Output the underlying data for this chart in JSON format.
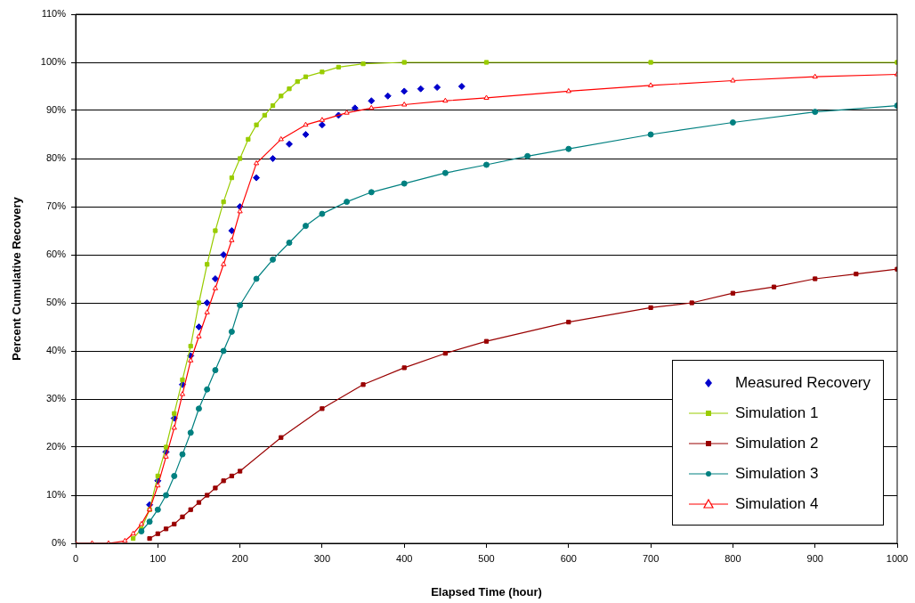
{
  "chart_data": {
    "type": "line",
    "xlabel": "Elapsed Time (hour)",
    "ylabel": "Percent Cumulative Recovery",
    "xlim": [
      0,
      1000
    ],
    "xticks": [
      0,
      100,
      200,
      300,
      400,
      500,
      600,
      700,
      800,
      900,
      1000
    ],
    "ylim": [
      0,
      110
    ],
    "yticks": [
      {
        "value": 0,
        "label": "0%"
      },
      {
        "value": 10,
        "label": "10%"
      },
      {
        "value": 20,
        "label": "20%"
      },
      {
        "value": 30,
        "label": "30%"
      },
      {
        "value": 40,
        "label": "40%"
      },
      {
        "value": 50,
        "label": "50%"
      },
      {
        "value": 60,
        "label": "60%"
      },
      {
        "value": 70,
        "label": "70%"
      },
      {
        "value": 80,
        "label": "80%"
      },
      {
        "value": 90,
        "label": "90%"
      },
      {
        "value": 100,
        "label": "100%"
      },
      {
        "value": 110,
        "label": "110%"
      }
    ],
    "grid": "y",
    "legend": "bottom right",
    "series": [
      {
        "name": "Measured Recovery",
        "type": "scatter",
        "marker": "diamond",
        "color": "#0000cc",
        "x": [
          90,
          100,
          110,
          120,
          130,
          140,
          150,
          160,
          170,
          180,
          190,
          200,
          220,
          240,
          260,
          280,
          300,
          320,
          340,
          360,
          380,
          400,
          420,
          440,
          470
        ],
        "values": [
          8,
          13,
          19,
          26,
          33,
          39,
          45,
          50,
          55,
          60,
          65,
          70,
          76,
          80,
          83,
          85,
          87,
          89,
          90.5,
          92,
          93,
          94,
          94.5,
          94.8,
          95
        ]
      },
      {
        "name": "Simulation 1",
        "type": "line",
        "marker": "square",
        "color": "#99cc00",
        "x": [
          70,
          80,
          90,
          100,
          110,
          120,
          130,
          140,
          150,
          160,
          170,
          180,
          190,
          200,
          210,
          220,
          230,
          240,
          250,
          260,
          270,
          280,
          300,
          320,
          350,
          400,
          500,
          700,
          1000
        ],
        "values": [
          1,
          3,
          7,
          14,
          20,
          27,
          34,
          41,
          50,
          58,
          65,
          71,
          76,
          80,
          84,
          87,
          89,
          91,
          93,
          94.5,
          96,
          97,
          98,
          99,
          99.7,
          100,
          100,
          100,
          100
        ]
      },
      {
        "name": "Simulation 2",
        "type": "line",
        "marker": "square",
        "color": "#990000",
        "x": [
          90,
          100,
          110,
          120,
          130,
          140,
          150,
          160,
          170,
          180,
          190,
          200,
          250,
          300,
          350,
          400,
          450,
          500,
          600,
          700,
          750,
          800,
          850,
          900,
          950,
          1000
        ],
        "values": [
          1,
          2,
          3,
          4,
          5.5,
          7,
          8.5,
          10,
          11.5,
          13,
          14,
          15,
          22,
          28,
          33,
          36.5,
          39.5,
          42,
          46,
          49,
          50,
          52,
          53.3,
          55,
          56,
          57
        ]
      },
      {
        "name": "Simulation 3",
        "type": "line",
        "marker": "circle",
        "color": "#008080",
        "x": [
          80,
          90,
          100,
          110,
          120,
          130,
          140,
          150,
          160,
          170,
          180,
          190,
          200,
          220,
          240,
          260,
          280,
          300,
          330,
          360,
          400,
          450,
          500,
          550,
          600,
          700,
          800,
          900,
          1000
        ],
        "values": [
          2.5,
          4.5,
          7,
          10,
          14,
          18.5,
          23,
          28,
          32,
          36,
          40,
          44,
          49.5,
          55,
          59,
          62.5,
          66,
          68.5,
          71,
          73,
          74.8,
          77,
          78.7,
          80.5,
          82,
          85,
          87.5,
          89.7,
          91
        ]
      },
      {
        "name": "Simulation 4",
        "type": "line",
        "marker": "triangle",
        "color": "#ff0000",
        "x": [
          0,
          20,
          40,
          60,
          70,
          80,
          90,
          100,
          110,
          120,
          130,
          140,
          150,
          160,
          170,
          180,
          190,
          200,
          220,
          250,
          280,
          300,
          330,
          360,
          400,
          450,
          500,
          600,
          700,
          800,
          900,
          1000
        ],
        "values": [
          0,
          0,
          0,
          0.5,
          2,
          4,
          7,
          12,
          18,
          24,
          31,
          38,
          43,
          48,
          53,
          58,
          63,
          69,
          79,
          84,
          87,
          88,
          89.5,
          90.5,
          91.2,
          92,
          92.6,
          94,
          95.2,
          96.2,
          97,
          97.5
        ]
      }
    ]
  }
}
